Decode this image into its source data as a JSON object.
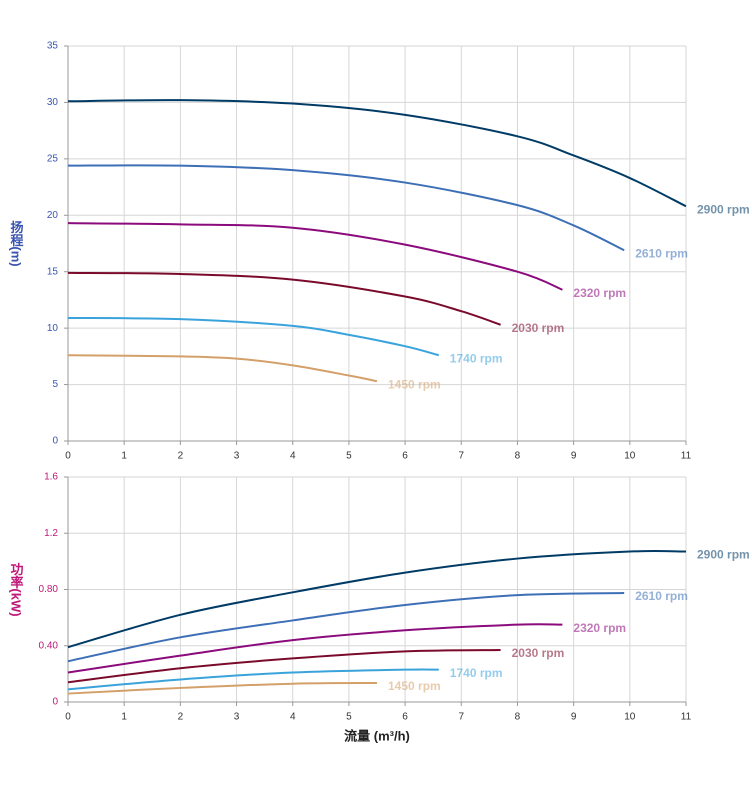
{
  "chart_data": [
    {
      "type": "line",
      "ylabel": "扬程(m)",
      "axis_color": "#3a55b0",
      "xlim": [
        0,
        11
      ],
      "xticks": [
        0,
        1,
        2,
        3,
        4,
        5,
        6,
        7,
        8,
        9,
        10,
        11
      ],
      "ylim": [
        0,
        35
      ],
      "yticks": [
        0,
        5,
        10,
        15,
        20,
        25,
        30,
        35
      ],
      "grid": true,
      "series": [
        {
          "name": "2900 rpm",
          "color": "#003b66",
          "x": [
            0,
            2,
            4,
            6,
            8,
            9,
            10,
            11
          ],
          "values": [
            30.1,
            30.2,
            29.9,
            28.9,
            27.0,
            25.3,
            23.3,
            20.8
          ]
        },
        {
          "name": "2610 rpm",
          "color": "#3d6fb6",
          "x": [
            0,
            2,
            4,
            6,
            8,
            9,
            9.9
          ],
          "values": [
            24.4,
            24.4,
            24.0,
            22.9,
            20.9,
            19.1,
            16.9
          ]
        },
        {
          "name": "2320 rpm",
          "color": "#8b0a7c",
          "x": [
            0,
            2,
            4,
            6,
            8,
            8.8
          ],
          "values": [
            19.3,
            19.2,
            18.9,
            17.4,
            15.0,
            13.4
          ]
        },
        {
          "name": "2030 rpm",
          "color": "#7a0a2c",
          "x": [
            0,
            2,
            4,
            6,
            7,
            7.7
          ],
          "values": [
            14.9,
            14.8,
            14.3,
            12.8,
            11.5,
            10.3
          ]
        },
        {
          "name": "1740 rpm",
          "color": "#3aa3dc",
          "x": [
            0,
            2,
            4,
            5,
            6,
            6.6
          ],
          "values": [
            10.9,
            10.8,
            10.2,
            9.4,
            8.4,
            7.6
          ]
        },
        {
          "name": "1450 rpm",
          "color": "#d4a06a",
          "x": [
            0,
            2,
            3,
            4,
            5,
            5.5
          ],
          "values": [
            7.6,
            7.5,
            7.3,
            6.7,
            5.8,
            5.3
          ]
        }
      ]
    },
    {
      "type": "line",
      "ylabel": "功率(kW)",
      "xlabel": "流量 (m³/h)",
      "axis_color": "#c0187a",
      "xlim": [
        0,
        11
      ],
      "xticks": [
        0,
        1,
        2,
        3,
        4,
        5,
        6,
        7,
        8,
        9,
        10,
        11
      ],
      "ylim": [
        0,
        1.6
      ],
      "yticks": [
        0,
        {
          "value": 0.4,
          "label": "0.40"
        },
        {
          "value": 0.8,
          "label": "0.80"
        },
        1.2,
        1.6
      ],
      "grid": true,
      "series": [
        {
          "name": "2900 rpm",
          "color": "#003b66",
          "x": [
            0,
            2,
            4,
            6,
            8,
            10,
            11
          ],
          "values": [
            0.39,
            0.62,
            0.78,
            0.92,
            1.02,
            1.07,
            1.07
          ]
        },
        {
          "name": "2610 rpm",
          "color": "#3d6fb6",
          "x": [
            0,
            2,
            4,
            6,
            8,
            9.9
          ],
          "values": [
            0.29,
            0.46,
            0.58,
            0.69,
            0.76,
            0.775
          ]
        },
        {
          "name": "2320 rpm",
          "color": "#8b0a7c",
          "x": [
            0,
            2,
            4,
            6,
            8,
            8.8
          ],
          "values": [
            0.21,
            0.33,
            0.44,
            0.51,
            0.55,
            0.55
          ]
        },
        {
          "name": "2030 rpm",
          "color": "#7a0a2c",
          "x": [
            0,
            2,
            4,
            6,
            7.7
          ],
          "values": [
            0.14,
            0.24,
            0.31,
            0.36,
            0.37
          ]
        },
        {
          "name": "1740 rpm",
          "color": "#3aa3dc",
          "x": [
            0,
            2,
            4,
            6,
            6.6
          ],
          "values": [
            0.09,
            0.16,
            0.21,
            0.23,
            0.23
          ]
        },
        {
          "name": "1450 rpm",
          "color": "#d4a06a",
          "x": [
            0,
            2,
            4,
            5.5
          ],
          "values": [
            0.06,
            0.1,
            0.13,
            0.135
          ]
        }
      ]
    }
  ]
}
